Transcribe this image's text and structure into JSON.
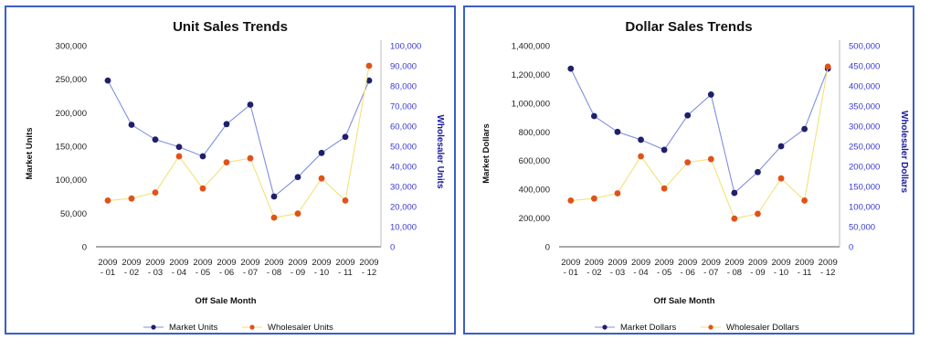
{
  "charts": [
    {
      "title": "Unit Sales Trends",
      "xlabel": "Off Sale Month",
      "ylabel_left": "Market Units",
      "ylabel_right": "Wholesaler Units",
      "legend": [
        "Market Units",
        "Wholesaler Units"
      ]
    },
    {
      "title": "Dollar Sales Trends",
      "xlabel": "Off Sale Month",
      "ylabel_left": "Market Dollars",
      "ylabel_right": "Wholesaler Dollars",
      "legend": [
        "Market Dollars",
        "Wholesaler Dollars"
      ]
    }
  ],
  "colors": {
    "market": "#1f1f6b",
    "market_line": "#7f8fe0",
    "wholesaler": "#e0521a",
    "wholesaler_line": "#f2e27a",
    "frame": "#3b5fc6"
  },
  "chart_data": [
    {
      "type": "line",
      "title": "Unit Sales Trends",
      "xlabel": "Off Sale Month",
      "categories": [
        "2009 - 01",
        "2009 - 02",
        "2009 - 03",
        "2009 - 04",
        "2009 - 05",
        "2009 - 06",
        "2009 - 07",
        "2009 - 08",
        "2009 - 09",
        "2009 - 10",
        "2009 - 11",
        "2009 - 12"
      ],
      "y_left": {
        "label": "Market Units",
        "ylim": [
          0,
          300000
        ],
        "ticks": [
          "0",
          "50,000",
          "100,000",
          "150,000",
          "200,000",
          "250,000",
          "300,000"
        ]
      },
      "y_right": {
        "label": "Wholesaler Units",
        "ylim": [
          0,
          100000
        ],
        "ticks": [
          "0",
          "10,000",
          "20,000",
          "30,000",
          "40,000",
          "50,000",
          "60,000",
          "70,000",
          "80,000",
          "90,000",
          "100,000"
        ]
      },
      "series": [
        {
          "name": "Market Units",
          "axis": "left",
          "values": [
            248000,
            182000,
            160000,
            149000,
            135000,
            183000,
            212000,
            75000,
            104000,
            140000,
            164000,
            248000
          ]
        },
        {
          "name": "Wholesaler Units",
          "axis": "right",
          "values": [
            23000,
            24000,
            27000,
            45000,
            29000,
            42000,
            44000,
            14500,
            16500,
            34000,
            23000,
            90000
          ]
        }
      ]
    },
    {
      "type": "line",
      "title": "Dollar Sales Trends",
      "xlabel": "Off Sale Month",
      "categories": [
        "2009 - 01",
        "2009 - 02",
        "2009 - 03",
        "2009 - 04",
        "2009 - 05",
        "2009 - 06",
        "2009 - 07",
        "2009 - 08",
        "2009 - 09",
        "2009 - 10",
        "2009 - 11",
        "2009 - 12"
      ],
      "y_left": {
        "label": "Market Dollars",
        "ylim": [
          0,
          1400000
        ],
        "ticks": [
          "0",
          "200,000",
          "400,000",
          "600,000",
          "800,000",
          "1,000,000",
          "1,200,000",
          "1,400,000"
        ]
      },
      "y_right": {
        "label": "Wholesaler Dollars",
        "ylim": [
          0,
          500000
        ],
        "ticks": [
          "0",
          "50,000",
          "100,000",
          "150,000",
          "200,000",
          "250,000",
          "300,000",
          "350,000",
          "400,000",
          "450,000",
          "500,000"
        ]
      },
      "series": [
        {
          "name": "Market Dollars",
          "axis": "left",
          "values": [
            1240000,
            910000,
            800000,
            745000,
            675000,
            915000,
            1060000,
            375000,
            520000,
            700000,
            820000,
            1240000
          ]
        },
        {
          "name": "Wholesaler Dollars",
          "axis": "right",
          "values": [
            115000,
            120000,
            133000,
            225000,
            145000,
            210000,
            218000,
            70000,
            82000,
            170000,
            115000,
            448000
          ]
        }
      ]
    }
  ]
}
